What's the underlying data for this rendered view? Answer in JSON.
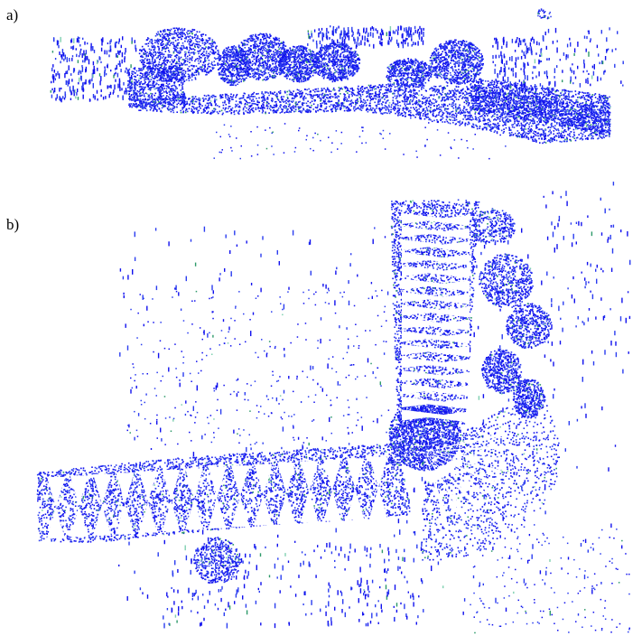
{
  "panels": [
    {
      "label": "a)"
    },
    {
      "label": "b)"
    }
  ],
  "colors": {
    "point_primary": "#1010ee",
    "point_secondary": "#2a3cf0",
    "point_accent": "#2e9a6a",
    "point_highlight": "#7fd0b0",
    "background": "#ffffff"
  }
}
